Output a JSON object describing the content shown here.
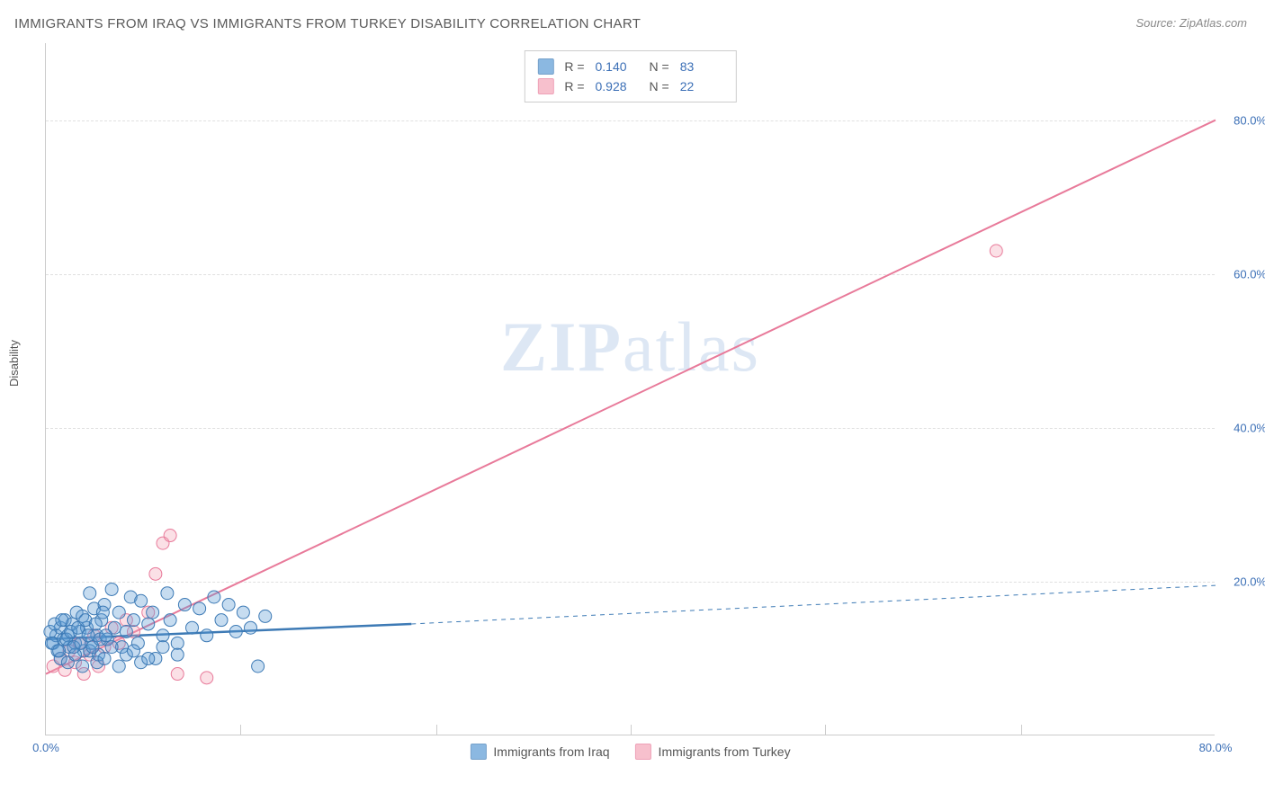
{
  "title": "IMMIGRANTS FROM IRAQ VS IMMIGRANTS FROM TURKEY DISABILITY CORRELATION CHART",
  "source": "Source: ZipAtlas.com",
  "watermark_a": "ZIP",
  "watermark_b": "atlas",
  "ylabel": "Disability",
  "chart": {
    "type": "scatter",
    "xlim": [
      0,
      80
    ],
    "ylim": [
      0,
      90
    ],
    "background_color": "#ffffff",
    "grid_color": "#e0e0e0",
    "axis_color": "#cccccc",
    "tick_color": "#3b6fb6",
    "tick_fontsize": 13,
    "yticks": [
      20,
      40,
      60,
      80
    ],
    "ytick_labels": [
      "20.0%",
      "40.0%",
      "60.0%",
      "80.0%"
    ],
    "xticks": [
      0,
      80
    ],
    "xtick_labels": [
      "0.0%",
      "80.0%"
    ],
    "x_minor_ticks": [
      13.3,
      26.7,
      40,
      53.3,
      66.7
    ],
    "marker_radius": 7,
    "marker_fill_opacity": 0.35,
    "line_width": 2
  },
  "series": {
    "iraq": {
      "label": "Immigrants from Iraq",
      "color": "#5b9bd5",
      "stroke": "#3d7ab5",
      "R": "0.140",
      "N": "83",
      "regression": {
        "x1": 0,
        "y1": 12.5,
        "x2": 25,
        "y2": 14.5,
        "extend_x2": 80,
        "extend_y2": 19.5
      },
      "points": [
        [
          0.5,
          12
        ],
        [
          0.7,
          13
        ],
        [
          0.8,
          11
        ],
        [
          1,
          14
        ],
        [
          1.2,
          12.5
        ],
        [
          1.3,
          15
        ],
        [
          1.5,
          13
        ],
        [
          1.6,
          11.5
        ],
        [
          1.8,
          14.5
        ],
        [
          2,
          12
        ],
        [
          2.1,
          16
        ],
        [
          2.3,
          13.5
        ],
        [
          2.5,
          15.5
        ],
        [
          2.6,
          11
        ],
        [
          2.8,
          14
        ],
        [
          3,
          18.5
        ],
        [
          3.1,
          12
        ],
        [
          3.3,
          16.5
        ],
        [
          3.5,
          13
        ],
        [
          3.6,
          10.5
        ],
        [
          3.8,
          15
        ],
        [
          4,
          17
        ],
        [
          4.2,
          12.5
        ],
        [
          4.5,
          19
        ],
        [
          4.7,
          14
        ],
        [
          5,
          16
        ],
        [
          5.2,
          11.5
        ],
        [
          5.5,
          13.5
        ],
        [
          5.8,
          18
        ],
        [
          6,
          15
        ],
        [
          6.3,
          12
        ],
        [
          6.5,
          17.5
        ],
        [
          7,
          14.5
        ],
        [
          7.3,
          16
        ],
        [
          7.5,
          10
        ],
        [
          8,
          13
        ],
        [
          8.3,
          18.5
        ],
        [
          8.5,
          15
        ],
        [
          9,
          12
        ],
        [
          9.5,
          17
        ],
        [
          10,
          14
        ],
        [
          10.5,
          16.5
        ],
        [
          11,
          13
        ],
        [
          11.5,
          18
        ],
        [
          12,
          15
        ],
        [
          12.5,
          17
        ],
        [
          13,
          13.5
        ],
        [
          13.5,
          16
        ],
        [
          14,
          14
        ],
        [
          14.5,
          9
        ],
        [
          15,
          15.5
        ],
        [
          1,
          10
        ],
        [
          1.5,
          9.5
        ],
        [
          2,
          10.5
        ],
        [
          2.5,
          9
        ],
        [
          3,
          11
        ],
        [
          3.5,
          9.5
        ],
        [
          4,
          10
        ],
        [
          4.5,
          11.5
        ],
        [
          5,
          9
        ],
        [
          5.5,
          10.5
        ],
        [
          6,
          11
        ],
        [
          6.5,
          9.5
        ],
        [
          7,
          10
        ],
        [
          8,
          11.5
        ],
        [
          9,
          10.5
        ],
        [
          0.3,
          13.5
        ],
        [
          0.4,
          12
        ],
        [
          0.6,
          14.5
        ],
        [
          0.9,
          11
        ],
        [
          1.1,
          15
        ],
        [
          1.4,
          12.5
        ],
        [
          1.7,
          13.5
        ],
        [
          1.9,
          11.5
        ],
        [
          2.2,
          14
        ],
        [
          2.4,
          12
        ],
        [
          2.7,
          15
        ],
        [
          2.9,
          13
        ],
        [
          3.2,
          11.5
        ],
        [
          3.4,
          14.5
        ],
        [
          3.7,
          12.5
        ],
        [
          3.9,
          16
        ],
        [
          4.1,
          13
        ]
      ]
    },
    "turkey": {
      "label": "Immigrants from Turkey",
      "color": "#f4a6b8",
      "stroke": "#e87a9a",
      "R": "0.928",
      "N": "22",
      "regression": {
        "x1": 0,
        "y1": 8,
        "x2": 80,
        "y2": 80
      },
      "points": [
        [
          0.5,
          9
        ],
        [
          1,
          10
        ],
        [
          1.3,
          8.5
        ],
        [
          1.6,
          11
        ],
        [
          2,
          9.5
        ],
        [
          2.3,
          12
        ],
        [
          2.6,
          8
        ],
        [
          3,
          10.5
        ],
        [
          3.3,
          13
        ],
        [
          3.6,
          9
        ],
        [
          4,
          11.5
        ],
        [
          4.5,
          14
        ],
        [
          5,
          12
        ],
        [
          5.5,
          15
        ],
        [
          6,
          13.5
        ],
        [
          7,
          16
        ],
        [
          7.5,
          21
        ],
        [
          8,
          25
        ],
        [
          8.5,
          26
        ],
        [
          9,
          8
        ],
        [
          11,
          7.5
        ],
        [
          65,
          63
        ]
      ]
    }
  },
  "legend_stats": {
    "r_label": "R =",
    "n_label": "N ="
  }
}
